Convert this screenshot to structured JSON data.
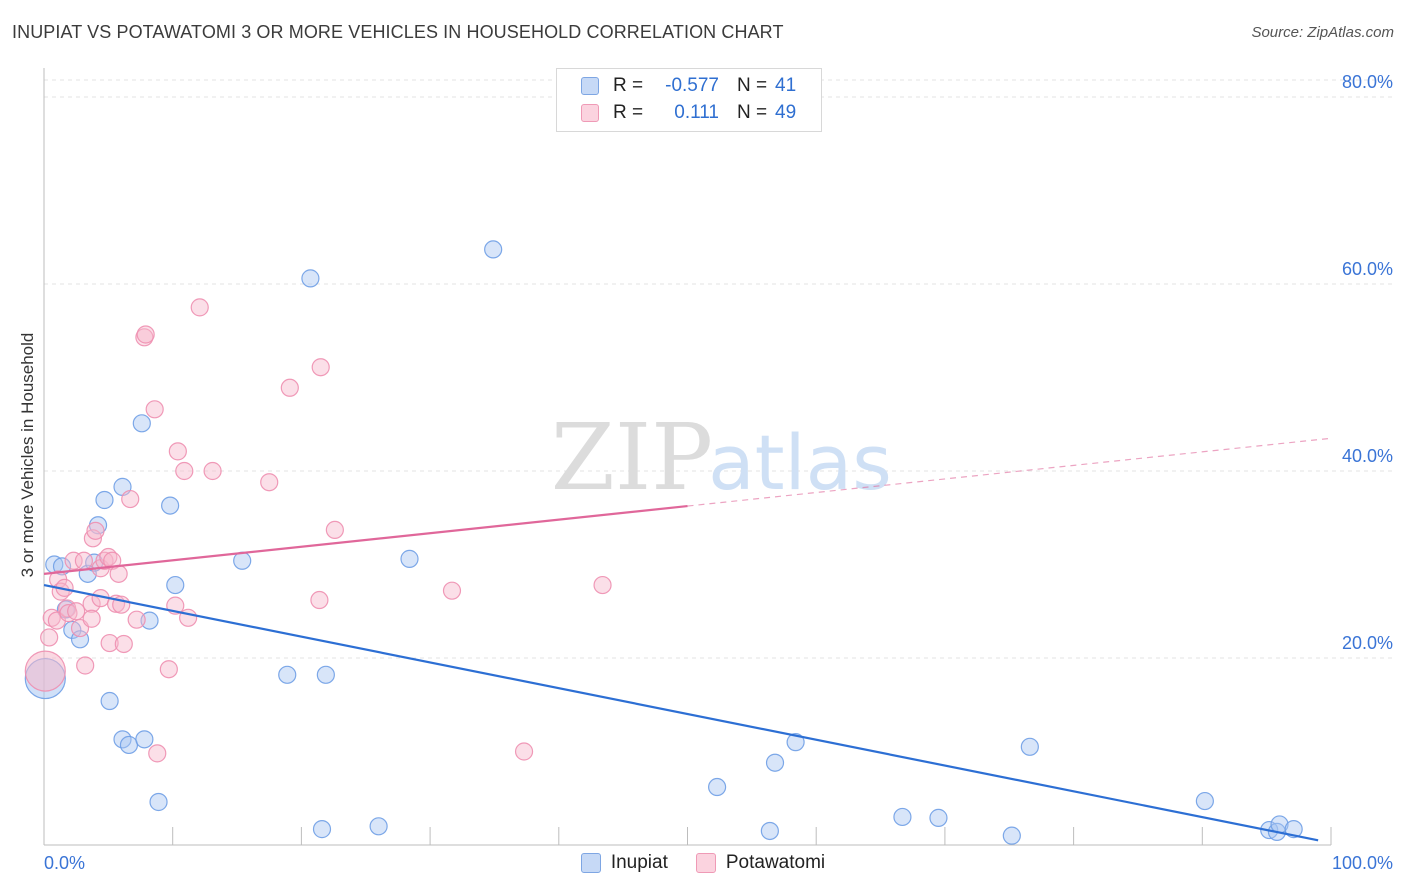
{
  "header": {
    "title": "INUPIAT VS POTAWATOMI 3 OR MORE VEHICLES IN HOUSEHOLD CORRELATION CHART",
    "source": "Source: ZipAtlas.com"
  },
  "watermark": {
    "zip": "ZIP",
    "atlas": "atlas"
  },
  "legend": {
    "rows": [
      {
        "r_label": "R =",
        "r_value": "-0.577",
        "n_label": "N =",
        "n_value": "41",
        "color": "#a9c6f2"
      },
      {
        "r_label": "R =",
        "r_value": "0.111",
        "n_label": "N =",
        "n_value": "49",
        "color": "#f6b8cb"
      }
    ]
  },
  "bottom_legend": {
    "items": [
      {
        "label": "Inupiat",
        "color": "#a9c6f2"
      },
      {
        "label": "Potawatomi",
        "color": "#f6b8cb"
      }
    ]
  },
  "chart_data": {
    "type": "scatter",
    "title": "INUPIAT VS POTAWATOMI 3 OR MORE VEHICLES IN HOUSEHOLD CORRELATION CHART",
    "xlabel": "",
    "ylabel": "3 or more Vehicles in Household",
    "xlim": [
      0,
      100
    ],
    "ylim": [
      0,
      80
    ],
    "x_tick_labels": [
      "0.0%",
      "100.0%"
    ],
    "y_ticks": [
      20,
      40,
      60,
      80
    ],
    "y_tick_labels": [
      "20.0%",
      "40.0%",
      "60.0%",
      "80.0%"
    ],
    "grid": true,
    "legend_position": "top-center",
    "series": [
      {
        "name": "Inupiat",
        "color": "#6f9fe6",
        "fill": "#a9c6f2",
        "trend": {
          "x0": 0,
          "y0": 27.8,
          "x1": 99,
          "y1": 0.5,
          "dashed_from": null
        },
        "points": [
          {
            "x": 0.1,
            "y": 17.8,
            "big": true
          },
          {
            "x": 0.8,
            "y": 30.0
          },
          {
            "x": 1.4,
            "y": 29.8
          },
          {
            "x": 1.7,
            "y": 25.2
          },
          {
            "x": 2.2,
            "y": 23.0
          },
          {
            "x": 2.8,
            "y": 22.0
          },
          {
            "x": 3.4,
            "y": 29.0
          },
          {
            "x": 3.9,
            "y": 30.2
          },
          {
            "x": 4.2,
            "y": 34.2
          },
          {
            "x": 4.7,
            "y": 36.9
          },
          {
            "x": 5.1,
            "y": 15.4
          },
          {
            "x": 6.1,
            "y": 38.3
          },
          {
            "x": 6.1,
            "y": 11.3
          },
          {
            "x": 6.6,
            "y": 10.7
          },
          {
            "x": 7.6,
            "y": 45.1
          },
          {
            "x": 7.8,
            "y": 11.3
          },
          {
            "x": 8.2,
            "y": 24.0
          },
          {
            "x": 8.9,
            "y": 4.6
          },
          {
            "x": 9.8,
            "y": 36.3
          },
          {
            "x": 10.2,
            "y": 27.8
          },
          {
            "x": 15.4,
            "y": 30.4
          },
          {
            "x": 18.9,
            "y": 18.2
          },
          {
            "x": 20.7,
            "y": 60.6
          },
          {
            "x": 21.6,
            "y": 1.7
          },
          {
            "x": 21.9,
            "y": 18.2
          },
          {
            "x": 26.0,
            "y": 2.0
          },
          {
            "x": 28.4,
            "y": 30.6
          },
          {
            "x": 34.9,
            "y": 63.7
          },
          {
            "x": 52.3,
            "y": 6.2
          },
          {
            "x": 56.4,
            "y": 1.5
          },
          {
            "x": 56.8,
            "y": 8.8
          },
          {
            "x": 58.4,
            "y": 11.0
          },
          {
            "x": 66.7,
            "y": 3.0
          },
          {
            "x": 69.5,
            "y": 2.9
          },
          {
            "x": 75.2,
            "y": 1.0
          },
          {
            "x": 76.6,
            "y": 10.5
          },
          {
            "x": 90.2,
            "y": 4.7
          },
          {
            "x": 95.2,
            "y": 1.6
          },
          {
            "x": 95.8,
            "y": 1.4
          },
          {
            "x": 96.0,
            "y": 2.2
          },
          {
            "x": 97.1,
            "y": 1.7
          }
        ]
      },
      {
        "name": "Potawatomi",
        "color": "#ee8fb0",
        "fill": "#f6b8cb",
        "trend": {
          "x0": 0,
          "y0": 29.0,
          "x1": 100,
          "y1": 43.5,
          "dashed_from": 50
        },
        "points": [
          {
            "x": 0.1,
            "y": 18.6,
            "big": true
          },
          {
            "x": 0.4,
            "y": 22.2
          },
          {
            "x": 0.6,
            "y": 24.3
          },
          {
            "x": 1.0,
            "y": 24.0
          },
          {
            "x": 1.1,
            "y": 28.4
          },
          {
            "x": 1.3,
            "y": 27.1
          },
          {
            "x": 1.6,
            "y": 27.5
          },
          {
            "x": 1.8,
            "y": 25.3
          },
          {
            "x": 1.9,
            "y": 24.8
          },
          {
            "x": 2.3,
            "y": 30.4
          },
          {
            "x": 2.5,
            "y": 25.0
          },
          {
            "x": 2.8,
            "y": 23.2
          },
          {
            "x": 3.1,
            "y": 30.4
          },
          {
            "x": 3.2,
            "y": 19.2
          },
          {
            "x": 3.7,
            "y": 25.8
          },
          {
            "x": 3.7,
            "y": 24.2
          },
          {
            "x": 3.8,
            "y": 32.8
          },
          {
            "x": 4.0,
            "y": 33.6
          },
          {
            "x": 4.4,
            "y": 26.4
          },
          {
            "x": 4.4,
            "y": 29.6
          },
          {
            "x": 4.7,
            "y": 30.4
          },
          {
            "x": 5.0,
            "y": 30.8
          },
          {
            "x": 5.1,
            "y": 21.6
          },
          {
            "x": 5.3,
            "y": 30.4
          },
          {
            "x": 5.6,
            "y": 25.8
          },
          {
            "x": 5.8,
            "y": 29.0
          },
          {
            "x": 6.0,
            "y": 25.7
          },
          {
            "x": 6.2,
            "y": 21.5
          },
          {
            "x": 6.7,
            "y": 37.0
          },
          {
            "x": 7.2,
            "y": 24.1
          },
          {
            "x": 7.8,
            "y": 54.3
          },
          {
            "x": 7.9,
            "y": 54.6
          },
          {
            "x": 8.6,
            "y": 46.6
          },
          {
            "x": 8.8,
            "y": 9.8
          },
          {
            "x": 9.7,
            "y": 18.8
          },
          {
            "x": 10.2,
            "y": 25.6
          },
          {
            "x": 10.4,
            "y": 42.1
          },
          {
            "x": 10.9,
            "y": 40.0
          },
          {
            "x": 11.2,
            "y": 24.3
          },
          {
            "x": 12.1,
            "y": 57.5
          },
          {
            "x": 13.1,
            "y": 40.0
          },
          {
            "x": 17.5,
            "y": 38.8
          },
          {
            "x": 19.1,
            "y": 48.9
          },
          {
            "x": 21.4,
            "y": 26.2
          },
          {
            "x": 21.5,
            "y": 51.1
          },
          {
            "x": 22.6,
            "y": 33.7
          },
          {
            "x": 31.7,
            "y": 27.2
          },
          {
            "x": 37.3,
            "y": 10.0
          },
          {
            "x": 43.4,
            "y": 27.8
          }
        ]
      }
    ]
  }
}
